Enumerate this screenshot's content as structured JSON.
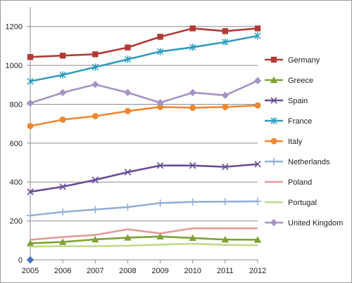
{
  "chart_data": {
    "type": "line",
    "title": "",
    "xlabel": "",
    "ylabel": "",
    "x": [
      "2005",
      "2006",
      "2007",
      "2008",
      "2009",
      "2010",
      "2011",
      "2012"
    ],
    "ylim": [
      0,
      1300
    ],
    "yticks": [
      0,
      200,
      400,
      600,
      800,
      1000,
      1200
    ],
    "grid": "horizontal",
    "legend_position": "right",
    "series": [
      {
        "name": "Germany",
        "color": "#b23a35",
        "marker": "square",
        "values": [
          1043,
          1050,
          1057,
          1092,
          1147,
          1190,
          1176,
          1190
        ]
      },
      {
        "name": "Greece",
        "color": "#7ea234",
        "marker": "triangle",
        "values": [
          85,
          92,
          105,
          114,
          120,
          112,
          104,
          103
        ]
      },
      {
        "name": "Spain",
        "color": "#6a4a96",
        "marker": "x",
        "values": [
          350,
          376,
          411,
          451,
          485,
          485,
          478,
          492
        ]
      },
      {
        "name": "France",
        "color": "#2f9cbd",
        "marker": "asterisk",
        "values": [
          918,
          951,
          991,
          1031,
          1071,
          1093,
          1120,
          1152
        ]
      },
      {
        "name": "Italy",
        "color": "#ee8830",
        "marker": "circle",
        "values": [
          688,
          721,
          739,
          765,
          786,
          782,
          786,
          794
        ]
      },
      {
        "name": "Netherlands",
        "color": "#93b0d6",
        "marker": "plus",
        "values": [
          228,
          246,
          259,
          271,
          292,
          298,
          299,
          301
        ]
      },
      {
        "name": "Poland",
        "color": "#e49b97",
        "marker": "none",
        "values": [
          103,
          117,
          128,
          157,
          136,
          162,
          162,
          162
        ]
      },
      {
        "name": "Portugal",
        "color": "#bfd98b",
        "marker": "none",
        "values": [
          68,
          70,
          70,
          73,
          78,
          83,
          77,
          75
        ]
      },
      {
        "name": "United Kingdom",
        "color": "#a493c3",
        "marker": "diamond",
        "values": [
          806,
          860,
          902,
          860,
          808,
          860,
          846,
          921
        ]
      }
    ],
    "extra_marker": {
      "x": "2005",
      "y": 0,
      "color": "#4472c4",
      "marker": "diamond"
    }
  }
}
